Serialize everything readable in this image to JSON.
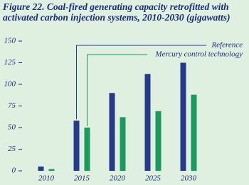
{
  "chart_data": {
    "type": "bar",
    "title": "Figure 22. Coal-fired generating capacity retrofitted with activated carbon injection systems, 2010-2030 (gigawatts)",
    "categories": [
      "2010",
      "2015",
      "2020",
      "2025",
      "2030"
    ],
    "series": [
      {
        "name": "Reference",
        "color": "#263a8c",
        "values": [
          5,
          58,
          90,
          112,
          125
        ]
      },
      {
        "name": "Mercury control technology",
        "color": "#1a9a5c",
        "values": [
          2,
          50,
          62,
          69,
          88
        ]
      }
    ],
    "ylim": [
      0,
      150
    ],
    "yticks": [
      0,
      25,
      50,
      75,
      100,
      125,
      150
    ],
    "grid": false
  }
}
